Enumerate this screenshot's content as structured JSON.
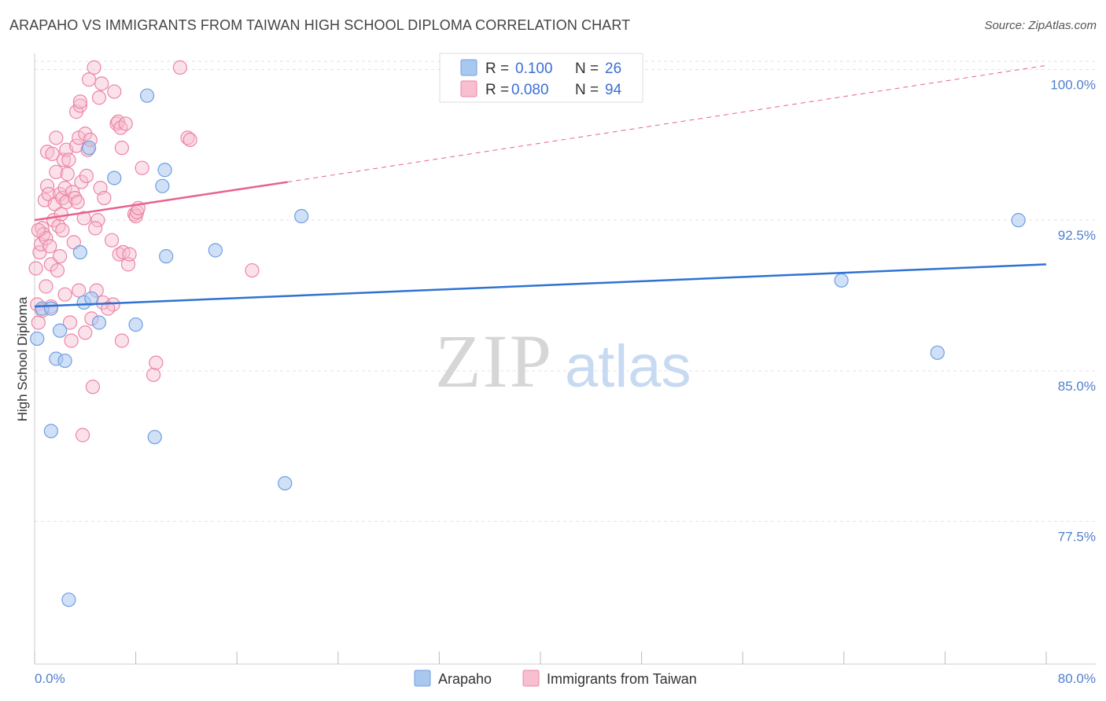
{
  "title": "ARAPAHO VS IMMIGRANTS FROM TAIWAN HIGH SCHOOL DIPLOMA CORRELATION CHART",
  "source": "Source: ZipAtlas.com",
  "watermark": {
    "zip": "ZIP",
    "atlas": "atlas"
  },
  "colors": {
    "blue_fill": "#a9c8f0",
    "blue_stroke": "#6f9ee0",
    "blue_line": "#2f72d2",
    "pink_fill": "#f7bfd0",
    "pink_stroke": "#ec85a6",
    "pink_line": "#e8628e",
    "tick_label": "#4f7fcf",
    "grid": "#e3e3e3"
  },
  "legend": {
    "rows": [
      {
        "r_label": "R =",
        "r_value": "0.100",
        "n_label": "N =",
        "n_value": "26"
      },
      {
        "r_label": "R =",
        "r_value": "0.080",
        "n_label": "N =",
        "n_value": "94"
      }
    ]
  },
  "chart_data": {
    "type": "scatter",
    "title": "ARAPAHO VS IMMIGRANTS FROM TAIWAN HIGH SCHOOL DIPLOMA CORRELATION CHART",
    "xlabel": "",
    "ylabel": "High School Diploma",
    "xlim": [
      0,
      80
    ],
    "ylim": [
      70.4,
      100.8
    ],
    "x_tick_labels": [
      "0.0%",
      "80.0%"
    ],
    "y_ticks": [
      77.5,
      85.0,
      92.5,
      100.0
    ],
    "y_tick_labels": [
      "77.5%",
      "85.0%",
      "92.5%",
      "100.0%"
    ],
    "grid": true,
    "legend_position": "top-center",
    "series": [
      {
        "name": "Arapaho",
        "r": 0.1,
        "n": 26,
        "trend": {
          "x0": 0,
          "y0": 88.2,
          "x1": 80,
          "y1": 90.3,
          "dashed_to": null
        },
        "points": [
          [
            0.2,
            86.6
          ],
          [
            0.6,
            88.1
          ],
          [
            1.3,
            82.0
          ],
          [
            1.3,
            88.1
          ],
          [
            1.7,
            85.6
          ],
          [
            2.0,
            87.0
          ],
          [
            2.4,
            85.5
          ],
          [
            2.7,
            73.6
          ],
          [
            3.6,
            90.9
          ],
          [
            3.9,
            88.4
          ],
          [
            4.3,
            96.1
          ],
          [
            4.5,
            88.6
          ],
          [
            5.1,
            87.4
          ],
          [
            6.3,
            94.6
          ],
          [
            8.0,
            87.3
          ],
          [
            8.9,
            98.7
          ],
          [
            9.5,
            81.7
          ],
          [
            10.1,
            94.2
          ],
          [
            10.3,
            95.0
          ],
          [
            10.4,
            90.7
          ],
          [
            14.3,
            91.0
          ],
          [
            19.8,
            79.4
          ],
          [
            21.1,
            92.7
          ],
          [
            63.8,
            89.5
          ],
          [
            71.4,
            85.9
          ],
          [
            77.8,
            92.5
          ]
        ]
      },
      {
        "name": "Immigrants from Taiwan",
        "r": 0.08,
        "n": 94,
        "trend": {
          "x0": 0,
          "y0": 92.5,
          "x1": 20,
          "y1": 94.4,
          "dashed_to": [
            80,
            100.2
          ]
        },
        "points": [
          [
            0.1,
            90.1
          ],
          [
            0.2,
            88.3
          ],
          [
            0.3,
            87.4
          ],
          [
            0.4,
            90.9
          ],
          [
            0.5,
            91.3
          ],
          [
            0.6,
            92.1
          ],
          [
            0.6,
            88.0
          ],
          [
            0.7,
            91.8
          ],
          [
            0.8,
            93.5
          ],
          [
            0.9,
            91.6
          ],
          [
            1.0,
            94.2
          ],
          [
            1.0,
            95.9
          ],
          [
            1.1,
            93.8
          ],
          [
            1.2,
            91.2
          ],
          [
            1.3,
            90.3
          ],
          [
            1.3,
            88.2
          ],
          [
            1.4,
            95.8
          ],
          [
            1.5,
            92.5
          ],
          [
            1.6,
            93.3
          ],
          [
            1.7,
            94.9
          ],
          [
            1.7,
            96.6
          ],
          [
            1.8,
            90.0
          ],
          [
            1.9,
            92.2
          ],
          [
            2.0,
            93.8
          ],
          [
            2.0,
            90.7
          ],
          [
            2.1,
            92.8
          ],
          [
            2.2,
            93.6
          ],
          [
            2.3,
            95.5
          ],
          [
            2.4,
            94.1
          ],
          [
            2.4,
            88.8
          ],
          [
            2.5,
            96.0
          ],
          [
            2.5,
            93.4
          ],
          [
            2.6,
            94.8
          ],
          [
            2.7,
            95.5
          ],
          [
            2.8,
            87.4
          ],
          [
            2.9,
            86.5
          ],
          [
            3.0,
            93.9
          ],
          [
            3.1,
            91.4
          ],
          [
            3.2,
            93.6
          ],
          [
            3.3,
            97.9
          ],
          [
            3.3,
            96.2
          ],
          [
            3.4,
            93.4
          ],
          [
            3.5,
            96.6
          ],
          [
            3.5,
            89.0
          ],
          [
            3.6,
            98.2
          ],
          [
            3.6,
            98.4
          ],
          [
            3.7,
            94.4
          ],
          [
            3.8,
            81.8
          ],
          [
            3.9,
            92.6
          ],
          [
            4.0,
            96.8
          ],
          [
            4.0,
            86.9
          ],
          [
            4.1,
            94.7
          ],
          [
            4.2,
            96.0
          ],
          [
            4.3,
            99.5
          ],
          [
            4.4,
            96.5
          ],
          [
            4.5,
            87.6
          ],
          [
            4.6,
            84.2
          ],
          [
            4.7,
            100.1
          ],
          [
            4.9,
            89.0
          ],
          [
            5.0,
            92.5
          ],
          [
            5.1,
            98.6
          ],
          [
            5.2,
            94.1
          ],
          [
            5.3,
            99.3
          ],
          [
            5.4,
            88.4
          ],
          [
            5.5,
            93.6
          ],
          [
            6.1,
            91.5
          ],
          [
            6.2,
            88.3
          ],
          [
            6.3,
            98.9
          ],
          [
            6.5,
            97.3
          ],
          [
            6.6,
            97.4
          ],
          [
            6.7,
            90.8
          ],
          [
            6.8,
            97.1
          ],
          [
            6.9,
            96.1
          ],
          [
            6.9,
            86.5
          ],
          [
            7.0,
            90.9
          ],
          [
            7.2,
            97.3
          ],
          [
            7.4,
            90.3
          ],
          [
            7.5,
            90.8
          ],
          [
            7.9,
            92.8
          ],
          [
            8.0,
            92.7
          ],
          [
            8.1,
            92.9
          ],
          [
            8.2,
            93.1
          ],
          [
            8.5,
            95.1
          ],
          [
            9.4,
            84.8
          ],
          [
            9.6,
            85.4
          ],
          [
            11.5,
            100.1
          ],
          [
            12.1,
            96.6
          ],
          [
            12.3,
            96.5
          ],
          [
            17.2,
            90.0
          ],
          [
            0.3,
            92.0
          ],
          [
            0.9,
            89.2
          ],
          [
            2.2,
            92.0
          ],
          [
            5.8,
            88.1
          ],
          [
            4.8,
            92.1
          ]
        ]
      }
    ]
  },
  "bottom_legend": {
    "items": [
      {
        "label": "Arapaho"
      },
      {
        "label": "Immigrants from Taiwan"
      }
    ]
  }
}
